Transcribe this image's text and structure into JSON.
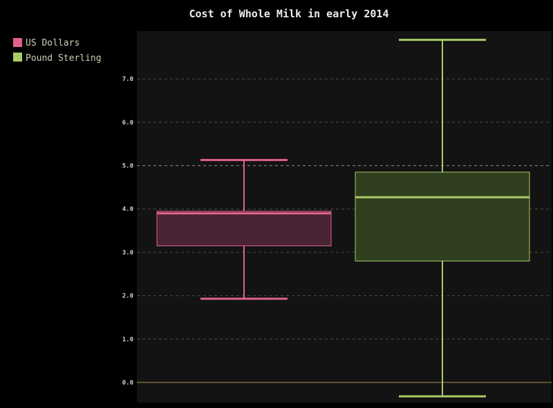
{
  "chart_data": {
    "type": "box",
    "title": "Cost of Whole Milk in early 2014",
    "ylim": [
      -0.5,
      8.1
    ],
    "yticks": [
      "0.0",
      "1.0",
      "2.0",
      "3.0",
      "4.0",
      "5.0",
      "6.0",
      "7.0"
    ],
    "grid": true,
    "legend_position": "top-left, outside plot",
    "series": [
      {
        "name": "US Dollars",
        "color": "#e0628c",
        "min": 1.93,
        "q1": 3.15,
        "median": 3.9,
        "q3": 3.95,
        "max": 5.13
      },
      {
        "name": "Pound Sterling",
        "color": "#a9cc66",
        "min": -0.32,
        "q1": 2.8,
        "median": 4.27,
        "q3": 4.85,
        "max": 7.9
      }
    ]
  }
}
